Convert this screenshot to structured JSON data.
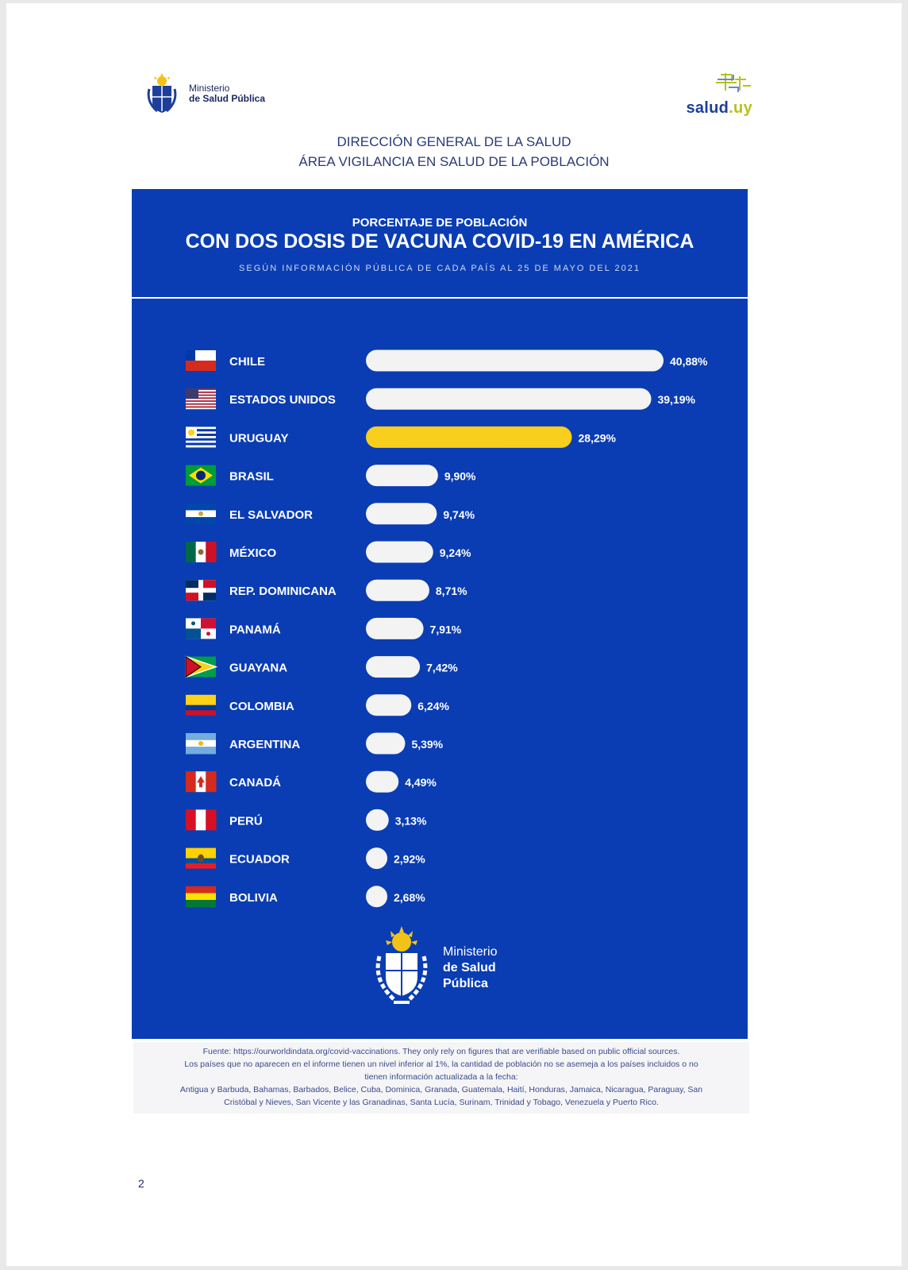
{
  "header": {
    "ministry_line1": "Ministerio",
    "ministry_line2": "de Salud Pública",
    "salud_logo_main": "salud",
    "salud_logo_suffix": ".uy",
    "direction_line1": "DIRECCIÓN GENERAL DE LA SALUD",
    "direction_line2": "ÁREA VIGILANCIA EN SALUD DE LA POBLACIÓN"
  },
  "colors": {
    "panel": "#0a3db3",
    "bar": "#f3f3f3",
    "highlight": "#f7cf1c"
  },
  "chart_data": {
    "type": "bar",
    "orientation": "horizontal",
    "title_line1": "PORCENTAJE DE POBLACIÓN",
    "title": "CON DOS DOSIS DE VACUNA COVID-19 EN AMÉRICA",
    "subtitle": "SEGÚN INFORMACIÓN PÚBLICA DE CADA PAÍS AL 25 DE MAYO DEL 2021",
    "categories": [
      "CHILE",
      "ESTADOS UNIDOS",
      "URUGUAY",
      "BRASIL",
      "EL SALVADOR",
      "MÉXICO",
      "REP. DOMINICANA",
      "PANAMÁ",
      "GUAYANA",
      "COLOMBIA",
      "ARGENTINA",
      "CANADÁ",
      "PERÚ",
      "ECUADOR",
      "BOLIVIA"
    ],
    "values": [
      40.88,
      39.19,
      28.29,
      9.9,
      9.74,
      9.24,
      8.71,
      7.91,
      7.42,
      6.24,
      5.39,
      4.49,
      3.13,
      2.92,
      2.68
    ],
    "value_labels": [
      "40,88%",
      "39,19%",
      "28,29%",
      "9,90%",
      "9,74%",
      "9,24%",
      "8,71%",
      "7,91%",
      "7,42%",
      "6,24%",
      "5,39%",
      "4,49%",
      "3,13%",
      "2,92%",
      "2,68%"
    ],
    "highlight": "URUGUAY",
    "flags": [
      "flag-chile",
      "flag-usa",
      "flag-uruguay",
      "flag-brazil",
      "flag-el-salvador",
      "flag-mexico",
      "flag-dominican-republic",
      "flag-panama",
      "flag-guyana",
      "flag-colombia",
      "flag-argentina",
      "flag-canada",
      "flag-peru",
      "flag-ecuador",
      "flag-bolivia"
    ]
  },
  "footer": {
    "ministry_line1": "Ministerio",
    "ministry_line2": "de Salud",
    "ministry_line3": "Pública"
  },
  "source": {
    "line1": "Fuente: https://ourworldindata.org/covid-vaccinations. They only rely on figures that are verifiable based on public official sources.",
    "line2": "Los países que no aparecen en el informe tienen un nivel inferior al 1%, la cantidad de población no se asemeja a los países incluidos o no",
    "line3": "tienen información actualizada a la fecha:",
    "line4": "Antigua y Barbuda, Bahamas, Barbados, Belice, Cuba, Dominica, Granada, Guatemala, Haití, Honduras, Jamaica, Nicaragua, Paraguay, San",
    "line5": "Cristóbal y Nieves, San Vicente y las Granadinas, Santa Lucía, Surinam, Trinidad y Tobago, Venezuela y Puerto Rico."
  },
  "page_number": "2"
}
